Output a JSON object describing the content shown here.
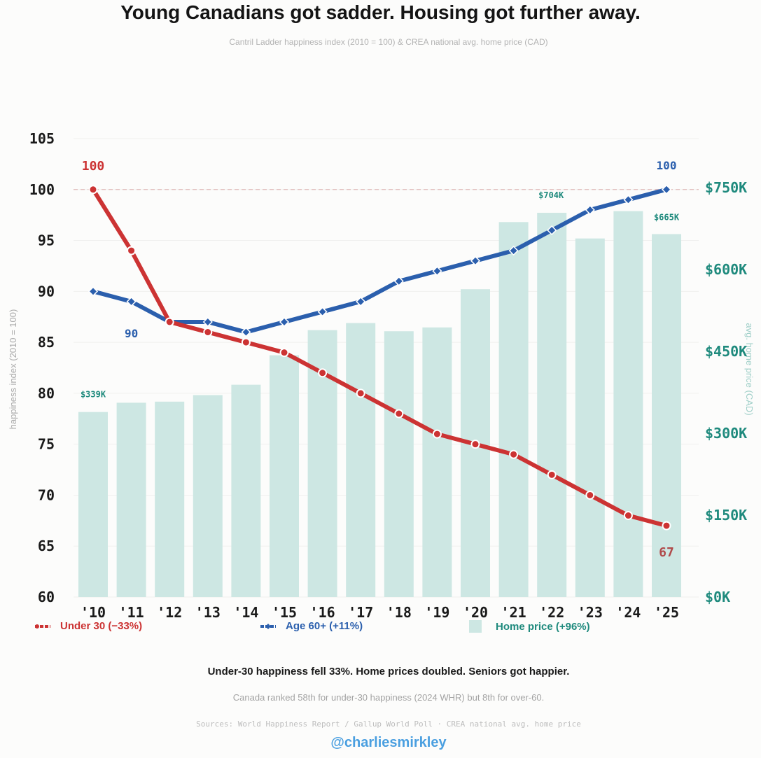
{
  "header": {
    "title": "Young Canadians got sadder. Housing got further away.",
    "subtitle": "Cantril Ladder happiness index (2010 = 100) & CREA national avg. home price (CAD)"
  },
  "legend": {
    "under30": "Under 30 (−33%)",
    "age60": "Age 60+ (+11%)",
    "home": "Home price (+96%)"
  },
  "footer": {
    "takeaway": "Under-30 happiness fell 33%. Home prices doubled. Seniors got happier.",
    "context": "Canada ranked 58th for under-30 happiness (2024 WHR) but 8th for over-60.",
    "sources": "Sources: World Happiness Report / Gallup World Poll · CREA national avg. home price",
    "handle": "@charliesmirkley"
  },
  "colors": {
    "under30": "#cc3333",
    "age60": "#2b5fad",
    "bars": "#cde7e3",
    "money": "#1f8a7d",
    "reference": "#e0b8b8"
  },
  "chart_data": {
    "type": "bar+line",
    "categories": [
      "'10",
      "'11",
      "'12",
      "'13",
      "'14",
      "'15",
      "'16",
      "'17",
      "'18",
      "'19",
      "'20",
      "'21",
      "'22",
      "'23",
      "'24",
      "'25"
    ],
    "series": [
      {
        "name": "Under 30 (−33%)",
        "type": "line",
        "axis": "left",
        "values": [
          100,
          94,
          87,
          86,
          85,
          84,
          82,
          80,
          78,
          76,
          75,
          74,
          72,
          70,
          68,
          67
        ]
      },
      {
        "name": "Age 60+ (+11%)",
        "type": "line",
        "axis": "left",
        "values": [
          90,
          89,
          87,
          87,
          86,
          87,
          88,
          89,
          91,
          92,
          93,
          94,
          96,
          98,
          99,
          100
        ]
      },
      {
        "name": "Home price (+96%)",
        "type": "bar",
        "axis": "right",
        "values": [
          339,
          356,
          358,
          370,
          389,
          443,
          489,
          502,
          487,
          494,
          564,
          687,
          704,
          657,
          707,
          665
        ]
      }
    ],
    "ylabel": "happiness index (2010 = 100)",
    "ylim": [
      60,
      105
    ],
    "yticks": [
      60,
      65,
      70,
      75,
      80,
      85,
      90,
      95,
      100,
      105
    ],
    "y2label": "avg. home price (CAD)",
    "y2lim": [
      0,
      840
    ],
    "y2ticks": [
      0,
      150,
      300,
      450,
      600,
      750
    ],
    "y2tick_labels": [
      "$0K",
      "$150K",
      "$300K",
      "$450K",
      "$600K",
      "$750K"
    ],
    "reference_line": 100,
    "annotations": {
      "under30_start": "100",
      "under30_end": "67",
      "age60_start": "90",
      "age60_end": "100",
      "price_start": "$339K",
      "price_peak": "$704K",
      "price_end": "$665K"
    }
  }
}
